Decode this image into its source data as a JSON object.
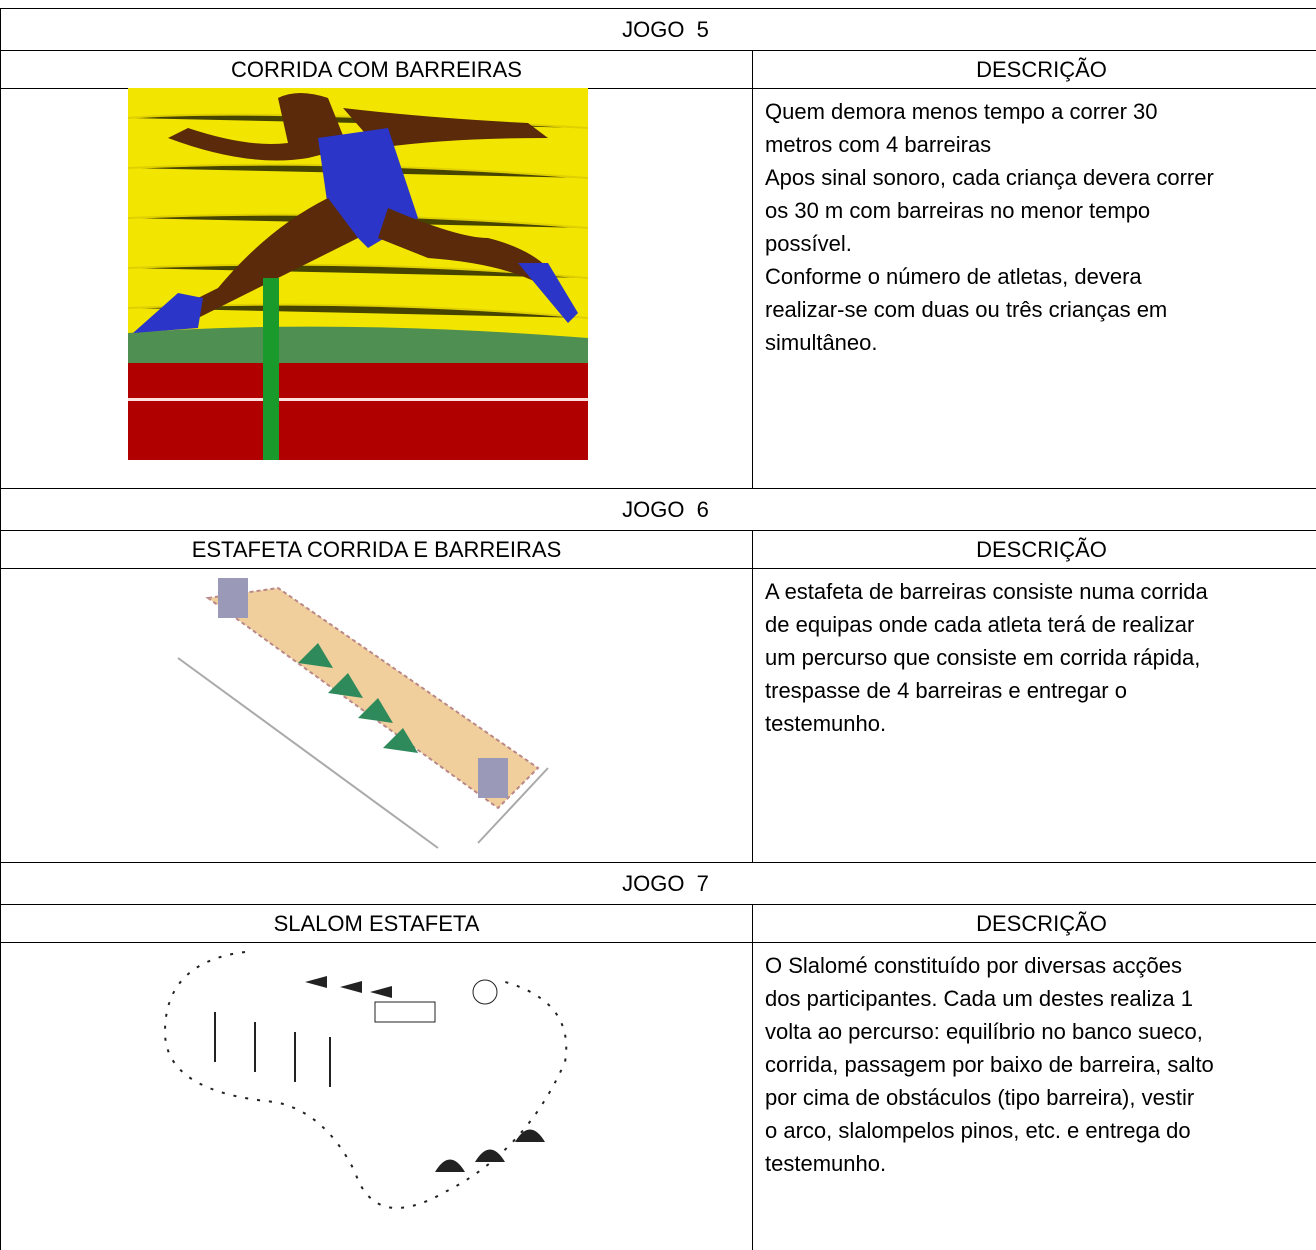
{
  "games": [
    {
      "title": "JOGO  5",
      "name": "CORRIDA COM BARREIRAS",
      "description_header": "DESCRIÇÃO",
      "description": [
        "Quem demora menos tempo a correr 30",
        "metros com 4 barreiras",
        "Apos sinal sonoro, cada criança devera correr",
        "os 30 m com barreiras no menor tempo",
        "possível.",
        "Conforme o número de atletas, devera",
        "realizar-se com duas ou três crianças em",
        "simultâneo."
      ]
    },
    {
      "title": "JOGO  6",
      "name": "ESTAFETA CORRIDA E BARREIRAS",
      "description_header": "DESCRIÇÃO",
      "description": [
        "A estafeta de barreiras consiste numa corrida",
        "de equipas onde cada atleta terá de realizar",
        "um percurso que consiste em corrida rápida,",
        "trespasse de 4 barreiras e entregar o",
        "testemunho."
      ]
    },
    {
      "title": "JOGO  7",
      "name": "SLALOM ESTAFETA",
      "description_header": "DESCRIÇÃO",
      "description": [
        "O Slalomé constituído por diversas acções",
        "dos participantes. Cada um destes realiza 1",
        "volta ao percurso: equilíbrio no banco sueco,",
        "corrida, passagem por baixo de barreira, salto",
        "por cima de obstáculos (tipo barreira), vestir",
        "o arco, slalompelos pinos, etc. e entrega do",
        "testemunho."
      ]
    }
  ]
}
